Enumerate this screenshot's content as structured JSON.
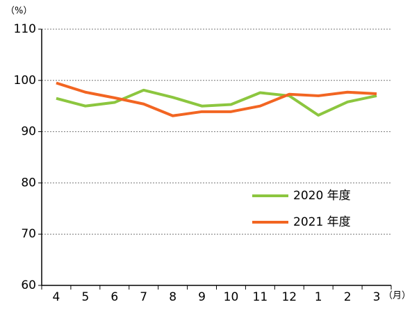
{
  "chart_data": {
    "type": "line",
    "y_unit": "（%）",
    "x_unit": "（月）",
    "categories": [
      "4",
      "5",
      "6",
      "7",
      "8",
      "9",
      "10",
      "11",
      "12",
      "1",
      "2",
      "3"
    ],
    "series": [
      {
        "name": "2020 年度",
        "color": "#8cc63f",
        "values": [
          96.5,
          95.0,
          95.7,
          98.1,
          96.7,
          95.0,
          95.3,
          97.6,
          97.0,
          93.2,
          95.8,
          97.0
        ]
      },
      {
        "name": "2021 年度",
        "color": "#f26522",
        "values": [
          99.5,
          97.7,
          96.6,
          95.4,
          93.1,
          93.9,
          93.9,
          95.0,
          97.3,
          97.0,
          97.7,
          97.4
        ]
      }
    ],
    "ylim": [
      60,
      110
    ],
    "yticks": [
      60,
      70,
      80,
      90,
      100,
      110
    ],
    "grid": true,
    "legend": "lower right"
  }
}
